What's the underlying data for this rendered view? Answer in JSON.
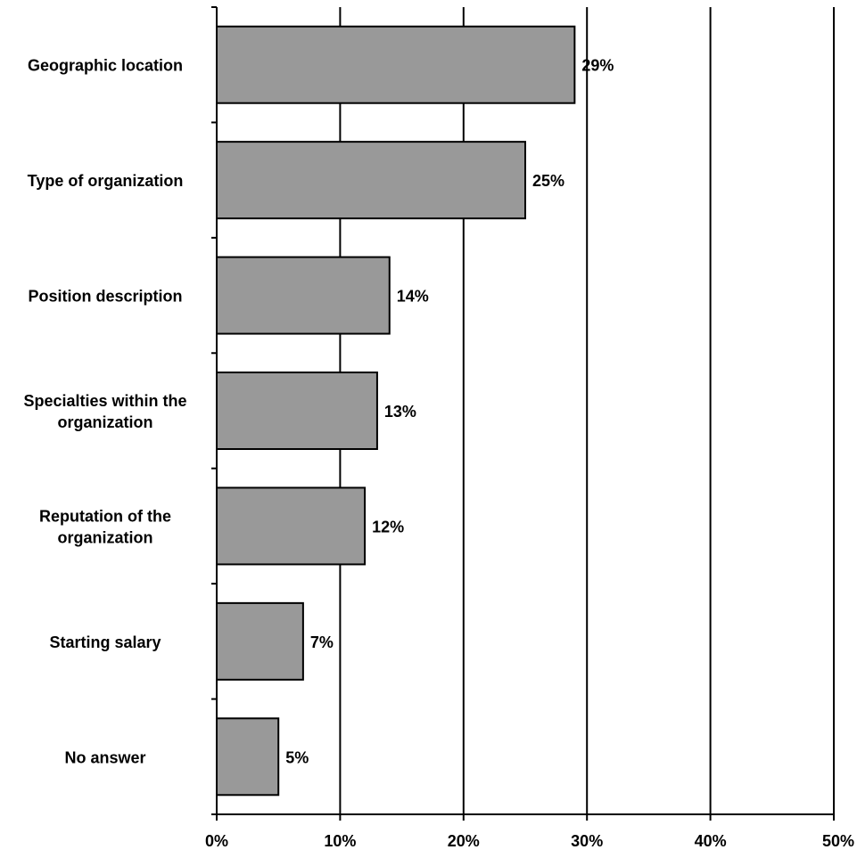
{
  "chart_data": {
    "type": "bar",
    "orientation": "horizontal",
    "title": "",
    "xlabel": "",
    "ylabel": "",
    "categories": [
      [
        "Geographic location"
      ],
      [
        "Type of organization"
      ],
      [
        "Position description"
      ],
      [
        "Specialties within the",
        "organization"
      ],
      [
        "Reputation of the",
        "organization"
      ],
      [
        "Starting salary"
      ],
      [
        "No answer"
      ]
    ],
    "values": [
      29,
      25,
      14,
      13,
      12,
      7,
      5
    ],
    "value_labels": [
      "29%",
      "25%",
      "14%",
      "13%",
      "12%",
      "7%",
      "5%"
    ],
    "xlim": [
      0,
      50
    ],
    "xticks": [
      0,
      10,
      20,
      30,
      40,
      50
    ],
    "xtick_labels": [
      "0%",
      "10%",
      "20%",
      "30%",
      "40%",
      "50%"
    ],
    "grid": "vertical",
    "legend": "none",
    "bar_color": "#999999",
    "bar_edge_color": "#000000"
  }
}
